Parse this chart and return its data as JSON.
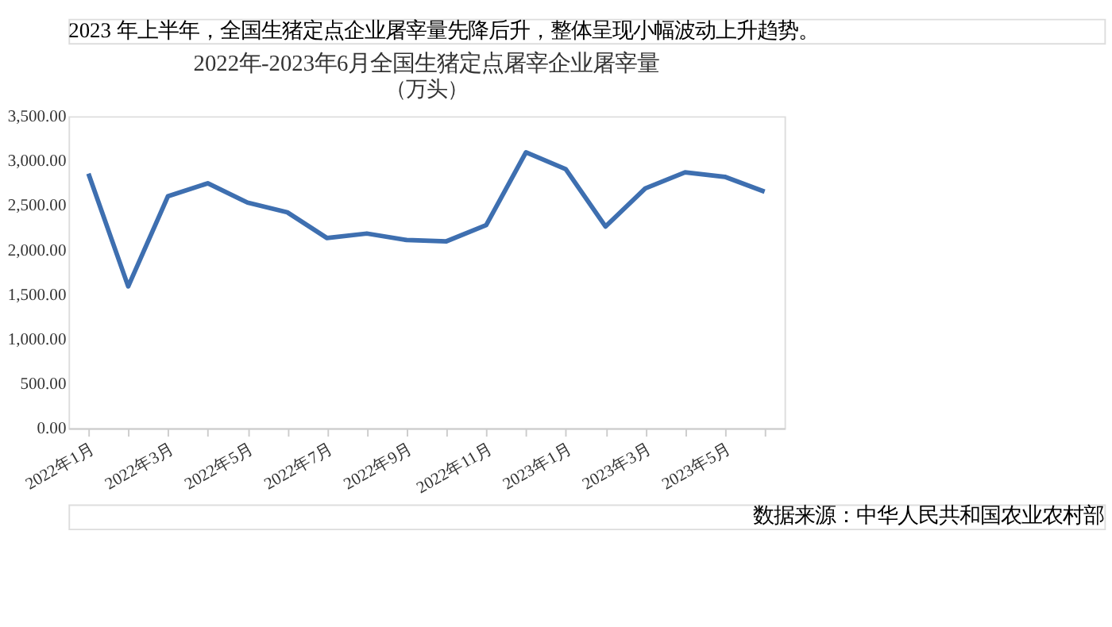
{
  "chart_data": {
    "type": "line",
    "title": "2022年-2023年6月全国生猪定点屠宰企业屠宰量",
    "subtitle": "（万头）",
    "categories": [
      "2022年1月",
      null,
      "2022年3月",
      null,
      "2022年5月",
      null,
      "2022年7月",
      null,
      "2022年9月",
      null,
      "2022年11月",
      null,
      "2023年1月",
      null,
      "2023年3月",
      null,
      "2023年5月",
      null
    ],
    "series": [
      {
        "color": "#3e6fb0",
        "values": [
          2856,
          1591,
          2603,
          2748,
          2531,
          2422,
          2133,
          2184,
          2111,
          2097,
          2278,
          3095,
          2907,
          2263,
          2690,
          2871,
          2820,
          2654
        ]
      }
    ],
    "ylim": [
      0,
      3500
    ],
    "yticks": [
      {
        "value": 0,
        "label": "0.00"
      },
      {
        "value": 500,
        "label": "500.00"
      },
      {
        "value": 1000,
        "label": "1,000.00"
      },
      {
        "value": 1500,
        "label": "1,500.00"
      },
      {
        "value": 2000,
        "label": "2,000.00"
      },
      {
        "value": 2500,
        "label": "2,500.00"
      },
      {
        "value": 3000,
        "label": "3,000.00"
      },
      {
        "value": 3500,
        "label": "3,500.00"
      }
    ],
    "grid": false,
    "legend": false,
    "marker": "none",
    "line_style": "solid",
    "annotations": [
      "2023 年上半年，全国生猪定点企业屠宰量先降后升，整体呈现小幅波动上升趋势。",
      "数据来源：中华人民共和国农业农村部"
    ]
  }
}
